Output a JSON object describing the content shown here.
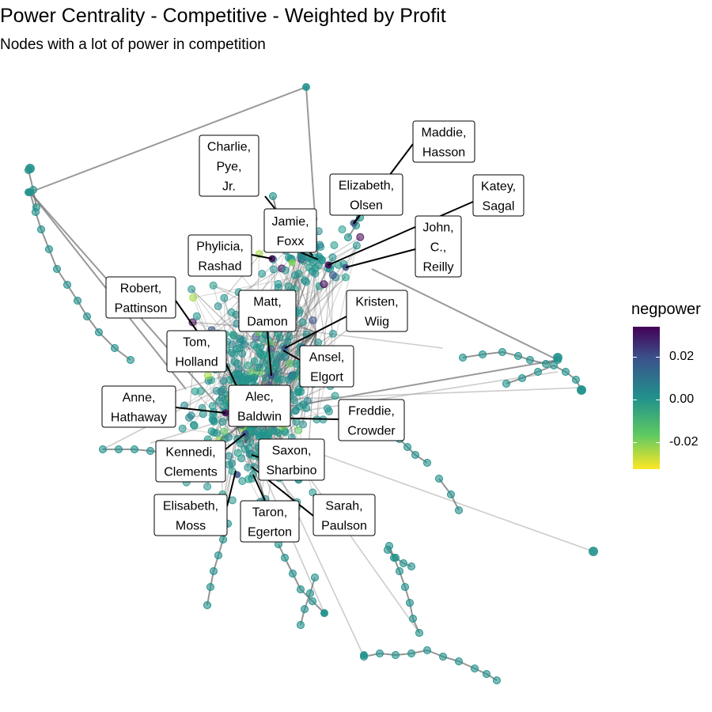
{
  "title": "Power Centrality - Competitive - Weighted by Profit",
  "subtitle": "Nodes with a lot of power in competition",
  "legend": {
    "title": "negpower",
    "ticks": [
      "0.02",
      "0.00",
      "-0.02"
    ],
    "colors": [
      "#440154",
      "#3b528b",
      "#21918c",
      "#5ec962",
      "#fde725"
    ]
  },
  "labels": [
    {
      "name": "charlie-pye-jr",
      "lines": [
        "Charlie,",
        "Pye,",
        "Jr."
      ]
    },
    {
      "name": "maddie-hasson",
      "lines": [
        "Maddie,",
        "Hasson"
      ]
    },
    {
      "name": "elizabeth-olsen",
      "lines": [
        "Elizabeth,",
        "Olsen"
      ]
    },
    {
      "name": "katey-sagal",
      "lines": [
        "Katey,",
        "Sagal"
      ]
    },
    {
      "name": "jamie-foxx",
      "lines": [
        "Jamie,",
        "Foxx"
      ]
    },
    {
      "name": "john-c-reilly",
      "lines": [
        "John,",
        "C.,",
        "Reilly"
      ]
    },
    {
      "name": "phylicia-rashad",
      "lines": [
        "Phylicia,",
        "Rashad"
      ]
    },
    {
      "name": "robert-pattinson",
      "lines": [
        "Robert,",
        "Pattinson"
      ]
    },
    {
      "name": "matt-damon",
      "lines": [
        "Matt,",
        "Damon"
      ]
    },
    {
      "name": "kristen-wiig",
      "lines": [
        "Kristen,",
        "Wiig"
      ]
    },
    {
      "name": "tom-holland",
      "lines": [
        "Tom,",
        "Holland"
      ]
    },
    {
      "name": "ansel-elgort",
      "lines": [
        "Ansel,",
        "Elgort"
      ]
    },
    {
      "name": "anne-hathaway",
      "lines": [
        "Anne,",
        "Hathaway"
      ]
    },
    {
      "name": "alec-baldwin",
      "lines": [
        "Alec,",
        "Baldwin"
      ]
    },
    {
      "name": "freddie-crowder",
      "lines": [
        "Freddie,",
        "Crowder"
      ]
    },
    {
      "name": "kennedi-clements",
      "lines": [
        "Kennedi,",
        "Clements"
      ]
    },
    {
      "name": "saxon-sharbino",
      "lines": [
        "Saxon,",
        "Sharbino"
      ]
    },
    {
      "name": "elisabeth-moss",
      "lines": [
        "Elisabeth,",
        "Moss"
      ]
    },
    {
      "name": "taron-egerton",
      "lines": [
        "Taron,",
        "Egerton"
      ]
    },
    {
      "name": "sarah-paulson",
      "lines": [
        "Sarah,",
        "Paulson"
      ]
    }
  ]
}
